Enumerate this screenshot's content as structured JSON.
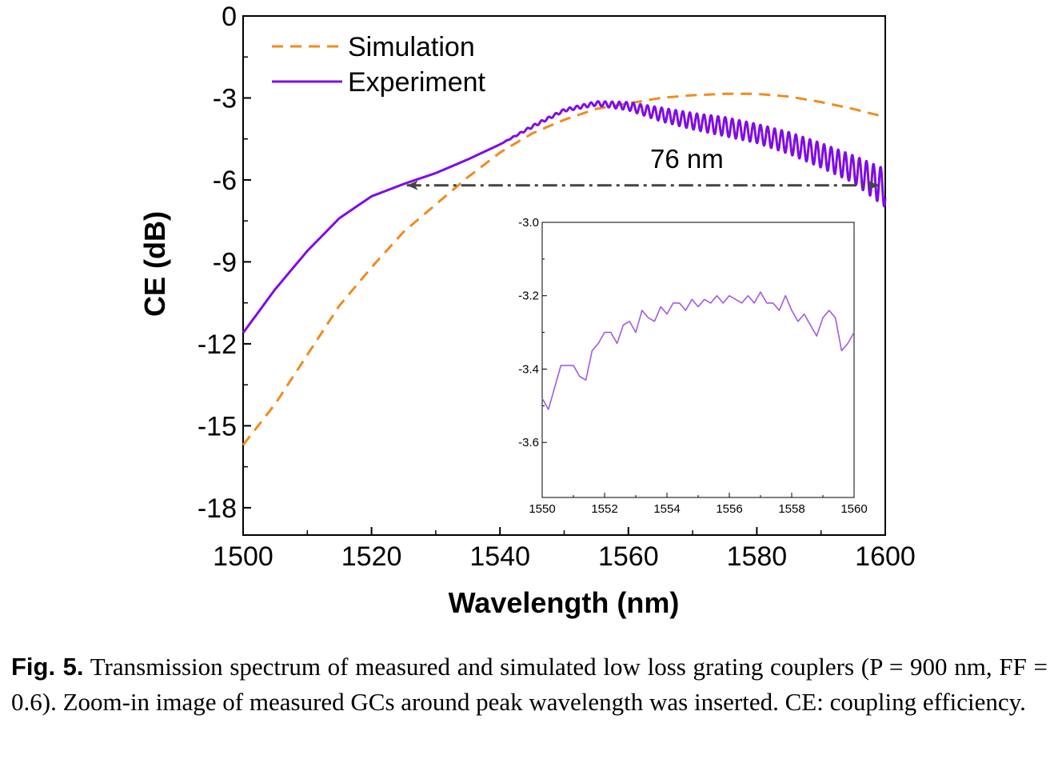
{
  "chart_data": [
    {
      "type": "line",
      "xlabel": "Wavelength (nm)",
      "ylabel": "CE (dB)",
      "xlim": [
        1500,
        1600
      ],
      "ylim": [
        -19,
        0
      ],
      "xticks": [
        1500,
        1520,
        1540,
        1560,
        1580,
        1600
      ],
      "yticks": [
        0,
        -3,
        -6,
        -9,
        -12,
        -15,
        -18
      ],
      "legend_position": "top-left",
      "grid": false,
      "series": [
        {
          "name": "Simulation",
          "style": "dashed",
          "color": "#F28A1E",
          "x": [
            1500,
            1505,
            1510,
            1515,
            1520,
            1525,
            1530,
            1535,
            1540,
            1545,
            1550,
            1555,
            1560,
            1565,
            1570,
            1575,
            1580,
            1585,
            1590,
            1595,
            1600
          ],
          "y": [
            -15.7,
            -14.2,
            -12.4,
            -10.6,
            -9.2,
            -7.9,
            -6.9,
            -5.9,
            -5.0,
            -4.3,
            -3.8,
            -3.4,
            -3.2,
            -3.0,
            -2.9,
            -2.85,
            -2.85,
            -2.95,
            -3.15,
            -3.4,
            -3.7
          ]
        },
        {
          "name": "Experiment",
          "style": "solid",
          "color": "#7F0BE8",
          "x": [
            1500,
            1505,
            1510,
            1515,
            1520,
            1525,
            1530,
            1535,
            1540,
            1545,
            1550,
            1555,
            1560,
            1565,
            1570,
            1575,
            1580,
            1585,
            1590,
            1595,
            1600
          ],
          "y": [
            -11.6,
            -10.0,
            -8.6,
            -7.4,
            -6.6,
            -6.15,
            -5.75,
            -5.25,
            -4.7,
            -4.05,
            -3.45,
            -3.2,
            -3.3,
            -3.6,
            -3.85,
            -4.05,
            -4.3,
            -4.65,
            -5.1,
            -5.6,
            -6.3
          ],
          "ripple_amplitude_db": [
            0,
            0,
            0,
            0,
            0,
            0,
            0,
            0,
            0,
            0.05,
            0.05,
            0.08,
            0.15,
            0.25,
            0.3,
            0.35,
            0.35,
            0.4,
            0.45,
            0.5,
            0.7
          ],
          "ripple_period_nm": 1.1
        }
      ],
      "annotation": {
        "text": "76 nm",
        "x_start": 1525.5,
        "x_end": 1600,
        "y": -6.2,
        "style": "dash-dot double arrow",
        "color": "#444444"
      }
    },
    {
      "type": "line",
      "role": "inset",
      "xlim": [
        1550,
        1560
      ],
      "ylim": [
        -3.75,
        -3.0
      ],
      "xticks": [
        1550,
        1552,
        1554,
        1556,
        1558,
        1560
      ],
      "yticks": [
        -3.0,
        -3.2,
        -3.4,
        -3.6
      ],
      "series": [
        {
          "color": "#A25BE0",
          "x": [
            1550.0,
            1550.2,
            1550.4,
            1550.6,
            1550.8,
            1551.0,
            1551.2,
            1551.4,
            1551.6,
            1551.8,
            1552.0,
            1552.2,
            1552.4,
            1552.6,
            1552.8,
            1553.0,
            1553.2,
            1553.4,
            1553.6,
            1553.8,
            1554.0,
            1554.2,
            1554.4,
            1554.6,
            1554.8,
            1555.0,
            1555.2,
            1555.4,
            1555.6,
            1555.8,
            1556.0,
            1556.2,
            1556.4,
            1556.6,
            1556.8,
            1557.0,
            1557.2,
            1557.4,
            1557.6,
            1557.8,
            1558.0,
            1558.2,
            1558.4,
            1558.6,
            1558.8,
            1559.0,
            1559.2,
            1559.4,
            1559.6,
            1559.8,
            1560.0
          ],
          "y": [
            -3.48,
            -3.51,
            -3.45,
            -3.39,
            -3.39,
            -3.39,
            -3.42,
            -3.43,
            -3.35,
            -3.33,
            -3.3,
            -3.3,
            -3.33,
            -3.28,
            -3.27,
            -3.3,
            -3.24,
            -3.26,
            -3.27,
            -3.23,
            -3.25,
            -3.22,
            -3.22,
            -3.24,
            -3.21,
            -3.23,
            -3.21,
            -3.22,
            -3.2,
            -3.22,
            -3.2,
            -3.21,
            -3.22,
            -3.2,
            -3.22,
            -3.19,
            -3.22,
            -3.22,
            -3.24,
            -3.2,
            -3.24,
            -3.27,
            -3.25,
            -3.28,
            -3.31,
            -3.26,
            -3.24,
            -3.26,
            -3.35,
            -3.33,
            -3.3
          ]
        }
      ]
    }
  ],
  "caption": {
    "label": "Fig. 5.",
    "text": "Transmission spectrum of measured and simulated low loss grating couplers (P = 900 nm, FF = 0.6).  Zoom-in image of measured GCs around peak wavelength was inserted.  CE: coupling efficiency."
  }
}
